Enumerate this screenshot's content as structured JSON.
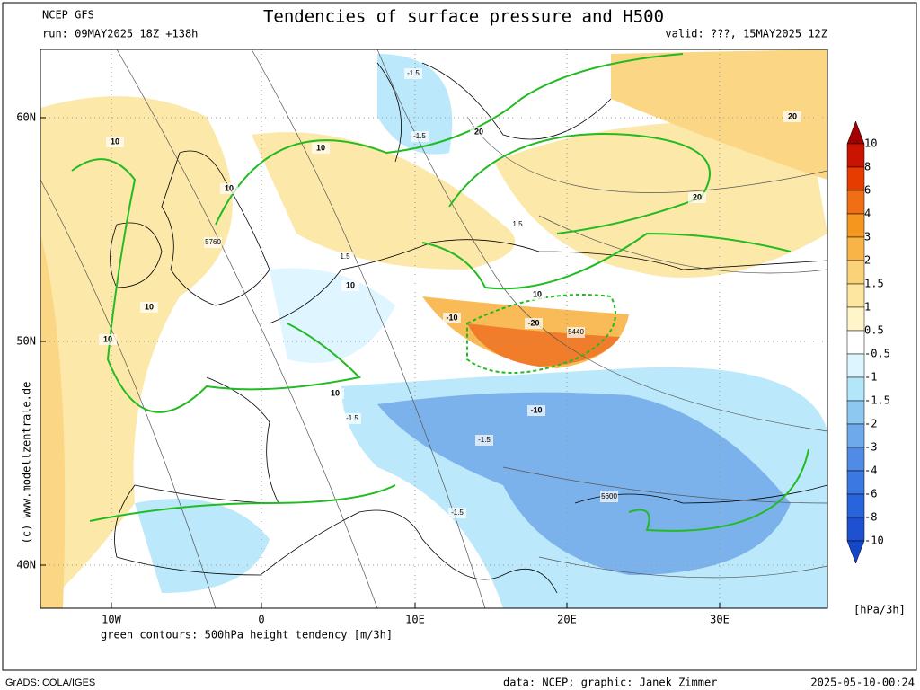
{
  "header": {
    "model": "NCEP GFS",
    "run": "run: 09MAY2025 18Z +138h",
    "title": "Tendencies of surface pressure and H500",
    "valid": "valid: ???, 15MAY2025 12Z"
  },
  "map": {
    "lat_labels": [
      "60N",
      "50N",
      "40N"
    ],
    "lon_labels": [
      "10W",
      "0",
      "10E",
      "20E",
      "30E"
    ],
    "contour_labels": [
      "10",
      "10",
      "10",
      "10",
      "10",
      "10",
      "10",
      "10",
      "20",
      "20",
      "20",
      "-10",
      "-20",
      "-10",
      "5760",
      "5440",
      "5600",
      "-1.5",
      "-1.5",
      "-1.5",
      "1.5",
      "1.5",
      "-1.5",
      "-1.5"
    ],
    "copyright": "(c) www.modellzentrale.de",
    "footnote": "green contours: 500hPa height tendency [m/3h]"
  },
  "colorbar": {
    "levels": [
      "10",
      "8",
      "6",
      "4",
      "3",
      "2",
      "1.5",
      "1",
      "0.5",
      "-0.5",
      "-1",
      "-1.5",
      "-2",
      "-3",
      "-4",
      "-6",
      "-8",
      "-10"
    ],
    "colors": [
      "#a00000",
      "#c81400",
      "#e63c00",
      "#f06e14",
      "#f5961e",
      "#f8b446",
      "#fad278",
      "#fce6a0",
      "#fff5c8",
      "#ffffff",
      "#dcf5ff",
      "#b4e6fa",
      "#8cc8f0",
      "#6eaaeb",
      "#508ce6",
      "#3c78e1",
      "#2864dc",
      "#1e50d2",
      "#1446c8"
    ],
    "unit": "[hPa/3h]"
  },
  "footer": {
    "left": "GrADS: COLA/IGES",
    "center": "data: NCEP; graphic: Janek Zimmer",
    "right": "2025-05-10-00:24"
  }
}
